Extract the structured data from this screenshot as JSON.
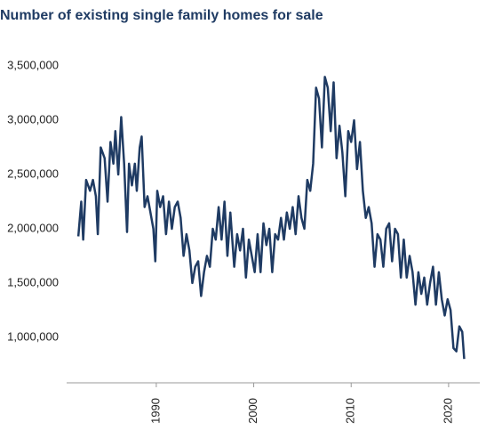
{
  "chart_data": {
    "type": "line",
    "title": "Number of existing single family homes for sale",
    "color": "#1f3b63",
    "xlim": [
      1980.8,
      2023.2
    ],
    "xticks": [
      1990,
      2000,
      2010,
      2020
    ],
    "ylim": [
      580000,
      3600000
    ],
    "yticks": [
      {
        "value": 1000000,
        "label": "1,000,000"
      },
      {
        "value": 1500000,
        "label": "1,500,000"
      },
      {
        "value": 2000000,
        "label": "2,000,000"
      },
      {
        "value": 2500000,
        "label": "2,500,000"
      },
      {
        "value": 3000000,
        "label": "3,000,000"
      },
      {
        "value": 3500000,
        "label": "3,500,000"
      }
    ],
    "grid": false,
    "x": [
      1982.0,
      1982.3,
      1982.5,
      1982.8,
      1983.2,
      1983.5,
      1983.8,
      1984.0,
      1984.3,
      1984.7,
      1985.0,
      1985.3,
      1985.6,
      1985.8,
      1986.1,
      1986.4,
      1986.7,
      1987.0,
      1987.2,
      1987.5,
      1987.8,
      1988.0,
      1988.3,
      1988.5,
      1988.8,
      1989.1,
      1989.4,
      1989.7,
      1989.9,
      1990.1,
      1990.4,
      1990.7,
      1991.0,
      1991.3,
      1991.6,
      1991.9,
      1992.2,
      1992.5,
      1992.8,
      1993.1,
      1993.4,
      1993.7,
      1994.0,
      1994.3,
      1994.6,
      1994.9,
      1995.2,
      1995.5,
      1995.8,
      1996.1,
      1996.4,
      1996.7,
      1997.0,
      1997.3,
      1997.6,
      1998.0,
      1998.3,
      1998.6,
      1998.9,
      1999.2,
      1999.5,
      1999.8,
      2000.1,
      2000.4,
      2000.7,
      2001.0,
      2001.3,
      2001.6,
      2001.9,
      2002.2,
      2002.5,
      2002.8,
      2003.1,
      2003.4,
      2003.7,
      2004.0,
      2004.3,
      2004.6,
      2004.9,
      2005.2,
      2005.5,
      2005.8,
      2006.1,
      2006.4,
      2006.7,
      2007.0,
      2007.3,
      2007.6,
      2007.9,
      2008.2,
      2008.5,
      2008.8,
      2009.1,
      2009.4,
      2009.7,
      2010.0,
      2010.3,
      2010.6,
      2010.9,
      2011.2,
      2011.5,
      2011.8,
      2012.1,
      2012.4,
      2012.7,
      2013.0,
      2013.3,
      2013.6,
      2013.9,
      2014.2,
      2014.5,
      2014.8,
      2015.1,
      2015.4,
      2015.7,
      2016.0,
      2016.3,
      2016.6,
      2016.9,
      2017.2,
      2017.5,
      2017.8,
      2018.1,
      2018.4,
      2018.7,
      2019.0,
      2019.3,
      2019.6,
      2019.9,
      2020.2,
      2020.5,
      2020.8,
      2021.1,
      2021.4,
      2021.6
    ],
    "values": [
      1930000,
      2250000,
      1900000,
      2450000,
      2350000,
      2450000,
      2300000,
      1950000,
      2750000,
      2650000,
      2250000,
      2800000,
      2600000,
      2900000,
      2500000,
      3030000,
      2600000,
      1970000,
      2600000,
      2400000,
      2600000,
      2350000,
      2750000,
      2850000,
      2200000,
      2300000,
      2150000,
      2000000,
      1700000,
      2350000,
      2200000,
      2300000,
      1950000,
      2250000,
      2000000,
      2200000,
      2250000,
      2100000,
      1750000,
      1950000,
      1800000,
      1500000,
      1650000,
      1700000,
      1380000,
      1600000,
      1750000,
      1650000,
      2000000,
      1900000,
      2200000,
      1900000,
      2250000,
      1750000,
      2150000,
      1650000,
      1950000,
      1800000,
      2000000,
      1550000,
      1900000,
      1750000,
      1600000,
      1950000,
      1600000,
      2050000,
      1850000,
      2000000,
      1600000,
      1950000,
      1900000,
      2100000,
      1900000,
      2150000,
      2000000,
      2200000,
      1950000,
      2300000,
      2100000,
      2000000,
      2450000,
      2350000,
      2600000,
      3300000,
      3200000,
      2750000,
      3400000,
      3300000,
      2900000,
      3350000,
      2650000,
      2950000,
      2700000,
      2300000,
      2900000,
      2800000,
      3000000,
      2550000,
      2800000,
      2350000,
      2100000,
      2200000,
      2050000,
      1650000,
      1950000,
      1900000,
      1650000,
      2000000,
      2050000,
      1700000,
      2000000,
      1950000,
      1550000,
      1900000,
      1550000,
      1750000,
      1600000,
      1300000,
      1600000,
      1400000,
      1550000,
      1300000,
      1500000,
      1650000,
      1300000,
      1600000,
      1350000,
      1200000,
      1350000,
      1250000,
      900000,
      870000,
      1100000,
      1050000,
      800000
    ]
  }
}
